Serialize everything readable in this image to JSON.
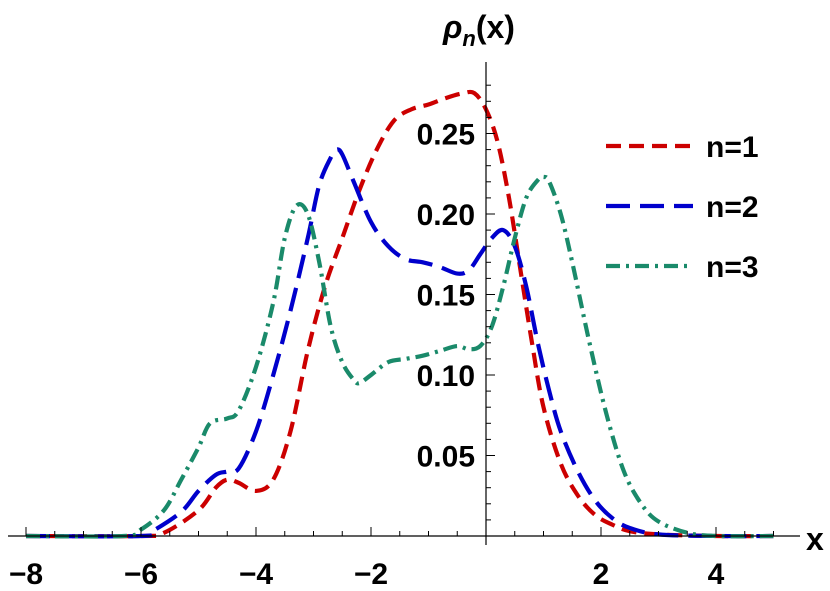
{
  "chart_data": {
    "type": "line",
    "title": "",
    "xlabel": "x",
    "ylabel": "ρn(x)",
    "ylabel_parts": {
      "base": "ρ",
      "subscript": "n",
      "suffix": "(x)"
    },
    "xlim": [
      -8.3,
      5.1
    ],
    "ylim": [
      0,
      0.295
    ],
    "x_ticks": [
      -8,
      -6,
      -4,
      -2,
      2,
      4
    ],
    "x_tick_labels": [
      "−8",
      "−6",
      "−4",
      "−2",
      "2",
      "4"
    ],
    "y_ticks": [
      0.05,
      0.1,
      0.15,
      0.2,
      0.25
    ],
    "y_tick_labels": [
      "0.05",
      "0.10",
      "0.15",
      "0.20",
      "0.25"
    ],
    "legend_position": "top-right",
    "series": [
      {
        "name": "n=1",
        "color": "#cc0000",
        "dash": "dashed",
        "x": [
          -8.0,
          -6.0,
          -5.6,
          -5.0,
          -4.7,
          -4.5,
          -4.3,
          -4.0,
          -3.7,
          -3.4,
          -3.1,
          -2.8,
          -2.5,
          -2.2,
          -1.9,
          -1.6,
          -1.3,
          -1.0,
          -0.7,
          -0.4,
          -0.2,
          0.0,
          0.2,
          0.4,
          0.6,
          0.8,
          1.0,
          1.3,
          1.6,
          1.9,
          2.2,
          2.5,
          3.0,
          4.0,
          5.0
        ],
        "values": [
          0.0,
          0.0,
          0.002,
          0.016,
          0.03,
          0.035,
          0.033,
          0.028,
          0.035,
          0.065,
          0.115,
          0.155,
          0.185,
          0.215,
          0.24,
          0.258,
          0.265,
          0.268,
          0.272,
          0.275,
          0.275,
          0.265,
          0.245,
          0.21,
          0.165,
          0.12,
          0.08,
          0.045,
          0.025,
          0.013,
          0.007,
          0.003,
          0.001,
          0.0,
          0.0
        ]
      },
      {
        "name": "n=2",
        "color": "#0000cc",
        "dash": "long-dashed",
        "x": [
          -8.0,
          -6.0,
          -5.8,
          -5.3,
          -5.0,
          -4.7,
          -4.5,
          -4.3,
          -4.0,
          -3.7,
          -3.4,
          -3.1,
          -2.9,
          -2.7,
          -2.6,
          -2.5,
          -2.3,
          -2.0,
          -1.7,
          -1.4,
          -1.1,
          -0.8,
          -0.5,
          -0.3,
          -0.1,
          0.1,
          0.3,
          0.5,
          0.7,
          0.9,
          1.1,
          1.3,
          1.6,
          1.9,
          2.2,
          2.5,
          3.0,
          4.0,
          5.0
        ],
        "values": [
          0.0,
          0.0,
          0.003,
          0.015,
          0.028,
          0.038,
          0.04,
          0.042,
          0.065,
          0.1,
          0.14,
          0.185,
          0.218,
          0.235,
          0.24,
          0.237,
          0.22,
          0.195,
          0.18,
          0.172,
          0.17,
          0.167,
          0.163,
          0.165,
          0.175,
          0.185,
          0.19,
          0.18,
          0.155,
          0.12,
          0.09,
          0.065,
          0.04,
          0.022,
          0.011,
          0.005,
          0.001,
          0.0,
          0.0
        ]
      },
      {
        "name": "n=3",
        "color": "#1a8a6a",
        "dash": "dash-dot",
        "x": [
          -8.0,
          -6.3,
          -6.0,
          -5.6,
          -5.3,
          -5.0,
          -4.8,
          -4.5,
          -4.3,
          -4.0,
          -3.7,
          -3.5,
          -3.3,
          -3.1,
          -2.9,
          -2.7,
          -2.5,
          -2.3,
          -2.2,
          -2.0,
          -1.7,
          -1.4,
          -1.1,
          -0.8,
          -0.5,
          -0.3,
          -0.1,
          0.1,
          0.3,
          0.5,
          0.7,
          0.9,
          1.0,
          1.1,
          1.3,
          1.5,
          1.8,
          2.1,
          2.4,
          2.7,
          3.0,
          3.5,
          4.0,
          5.0
        ],
        "values": [
          0.0,
          0.0,
          0.004,
          0.016,
          0.035,
          0.055,
          0.07,
          0.073,
          0.078,
          0.105,
          0.145,
          0.185,
          0.205,
          0.2,
          0.17,
          0.13,
          0.108,
          0.097,
          0.095,
          0.1,
          0.108,
          0.11,
          0.112,
          0.115,
          0.118,
          0.116,
          0.118,
          0.13,
          0.155,
          0.185,
          0.21,
          0.221,
          0.223,
          0.22,
          0.2,
          0.17,
          0.12,
          0.075,
          0.04,
          0.02,
          0.009,
          0.002,
          0.0,
          0.0
        ]
      }
    ]
  }
}
